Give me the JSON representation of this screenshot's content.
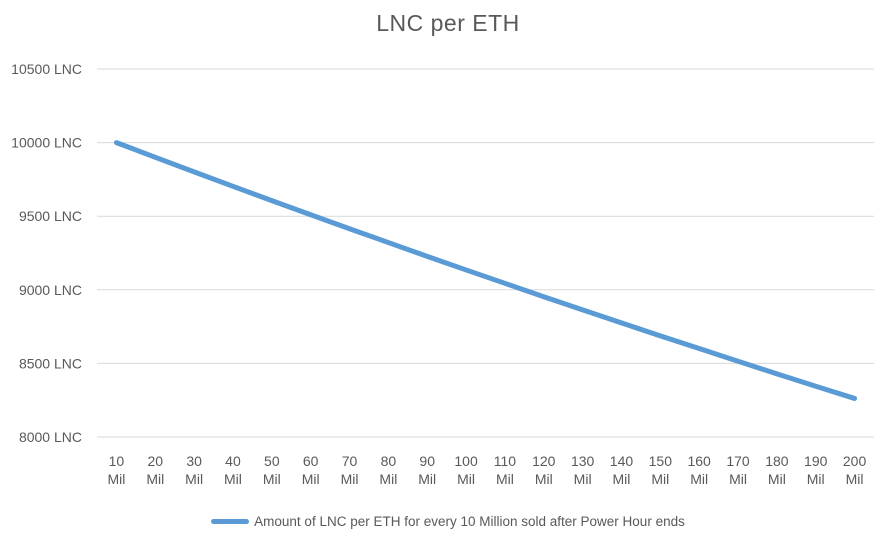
{
  "title": "LNC per ETH",
  "legend": {
    "label": "Amount of LNC per ETH for every 10 Million sold after Power Hour ends"
  },
  "colors": {
    "series": "#5B9BD5",
    "gridline": "#D9D9D9",
    "text": "#595959"
  },
  "chart_data": {
    "type": "line",
    "title": "LNC per ETH",
    "categories": [
      "10 Mil",
      "20 Mil",
      "30 Mil",
      "40 Mil",
      "50 Mil",
      "60 Mil",
      "70 Mil",
      "80 Mil",
      "90 Mil",
      "100 Mil",
      "110 Mil",
      "120 Mil",
      "130 Mil",
      "140 Mil",
      "150 Mil",
      "160 Mil",
      "170 Mil",
      "180 Mil",
      "190 Mil",
      "200 Mil"
    ],
    "series": [
      {
        "name": "Amount of LNC per ETH for every 10 Million sold after Power Hour ends",
        "values": [
          10000,
          9900,
          9801,
          9703,
          9606,
          9510,
          9415,
          9321,
          9227,
          9135,
          9044,
          8953,
          8864,
          8775,
          8687,
          8601,
          8515,
          8429,
          8345,
          8262
        ]
      }
    ],
    "xlabel": "",
    "ylabel": "",
    "ylim": [
      8000,
      10500
    ],
    "ytick_step": 500,
    "ytick_suffix": " LNC",
    "grid": true,
    "legend_position": "bottom"
  }
}
